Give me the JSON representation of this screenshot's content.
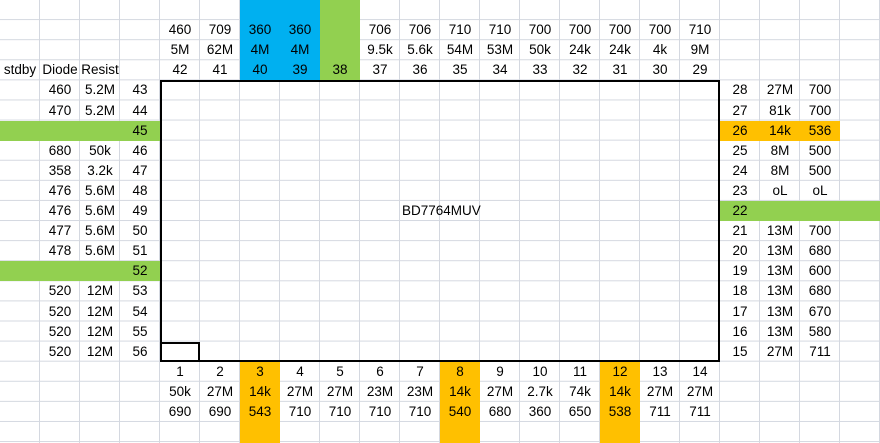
{
  "headers": {
    "stdby": "stdby",
    "diode": "Diode",
    "resist": "Resist"
  },
  "chip_label": "BD7764MUV",
  "colors": {
    "blue": "#00b0f0",
    "green": "#92d050",
    "orange": "#ffc000",
    "grid": "#d4d8e0"
  },
  "highlights": {
    "blue_pins": [
      40,
      39
    ],
    "green_pins": [
      38,
      45,
      52,
      22
    ],
    "orange_pins": [
      26,
      3,
      8,
      12
    ]
  },
  "top_pins": [
    {
      "pin": "42",
      "diode": "460",
      "resist": "5M"
    },
    {
      "pin": "41",
      "diode": "709",
      "resist": "62M"
    },
    {
      "pin": "40",
      "diode": "360",
      "resist": "4M"
    },
    {
      "pin": "39",
      "diode": "360",
      "resist": "4M"
    },
    {
      "pin": "38",
      "diode": "",
      "resist": ""
    },
    {
      "pin": "37",
      "diode": "706",
      "resist": "9.5k"
    },
    {
      "pin": "36",
      "diode": "706",
      "resist": "5.6k"
    },
    {
      "pin": "35",
      "diode": "710",
      "resist": "54M"
    },
    {
      "pin": "34",
      "diode": "710",
      "resist": "53M"
    },
    {
      "pin": "33",
      "diode": "700",
      "resist": "50k"
    },
    {
      "pin": "32",
      "diode": "700",
      "resist": "24k"
    },
    {
      "pin": "31",
      "diode": "700",
      "resist": "24k"
    },
    {
      "pin": "30",
      "diode": "700",
      "resist": "4k"
    },
    {
      "pin": "29",
      "diode": "710",
      "resist": "9M"
    }
  ],
  "left_pins": [
    {
      "pin": "43",
      "diode": "460",
      "resist": "5.2M"
    },
    {
      "pin": "44",
      "diode": "470",
      "resist": "5.2M"
    },
    {
      "pin": "45",
      "diode": "",
      "resist": ""
    },
    {
      "pin": "46",
      "diode": "680",
      "resist": "50k"
    },
    {
      "pin": "47",
      "diode": "358",
      "resist": "3.2k"
    },
    {
      "pin": "48",
      "diode": "476",
      "resist": "5.6M"
    },
    {
      "pin": "49",
      "diode": "476",
      "resist": "5.6M"
    },
    {
      "pin": "50",
      "diode": "477",
      "resist": "5.6M"
    },
    {
      "pin": "51",
      "diode": "478",
      "resist": "5.6M"
    },
    {
      "pin": "52",
      "diode": "",
      "resist": ""
    },
    {
      "pin": "53",
      "diode": "520",
      "resist": "12M"
    },
    {
      "pin": "54",
      "diode": "520",
      "resist": "12M"
    },
    {
      "pin": "55",
      "diode": "520",
      "resist": "12M"
    },
    {
      "pin": "56",
      "diode": "520",
      "resist": "12M"
    }
  ],
  "right_pins": [
    {
      "pin": "28",
      "resist": "27M",
      "diode": "700"
    },
    {
      "pin": "27",
      "resist": "81k",
      "diode": "700"
    },
    {
      "pin": "26",
      "resist": "14k",
      "diode": "536"
    },
    {
      "pin": "25",
      "resist": "8M",
      "diode": "500"
    },
    {
      "pin": "24",
      "resist": "8M",
      "diode": "500"
    },
    {
      "pin": "23",
      "resist": "oL",
      "diode": "oL"
    },
    {
      "pin": "22",
      "resist": "",
      "diode": ""
    },
    {
      "pin": "21",
      "resist": "13M",
      "diode": "700"
    },
    {
      "pin": "20",
      "resist": "13M",
      "diode": "680"
    },
    {
      "pin": "19",
      "resist": "13M",
      "diode": "600"
    },
    {
      "pin": "18",
      "resist": "13M",
      "diode": "680"
    },
    {
      "pin": "17",
      "resist": "13M",
      "diode": "670"
    },
    {
      "pin": "16",
      "resist": "13M",
      "diode": "580"
    },
    {
      "pin": "15",
      "resist": "27M",
      "diode": "711"
    }
  ],
  "bottom_pins": [
    {
      "pin": "1",
      "resist": "50k",
      "diode": "690"
    },
    {
      "pin": "2",
      "resist": "27M",
      "diode": "690"
    },
    {
      "pin": "3",
      "resist": "14k",
      "diode": "543"
    },
    {
      "pin": "4",
      "resist": "27M",
      "diode": "710"
    },
    {
      "pin": "5",
      "resist": "27M",
      "diode": "710"
    },
    {
      "pin": "6",
      "resist": "23M",
      "diode": "710"
    },
    {
      "pin": "7",
      "resist": "23M",
      "diode": "710"
    },
    {
      "pin": "8",
      "resist": "14k",
      "diode": "540"
    },
    {
      "pin": "9",
      "resist": "27M",
      "diode": "680"
    },
    {
      "pin": "10",
      "resist": "2.7k",
      "diode": "360"
    },
    {
      "pin": "11",
      "resist": "74k",
      "diode": "650"
    },
    {
      "pin": "12",
      "resist": "14k",
      "diode": "538"
    },
    {
      "pin": "13",
      "resist": "27M",
      "diode": "711"
    },
    {
      "pin": "14",
      "resist": "27M",
      "diode": "711"
    }
  ]
}
